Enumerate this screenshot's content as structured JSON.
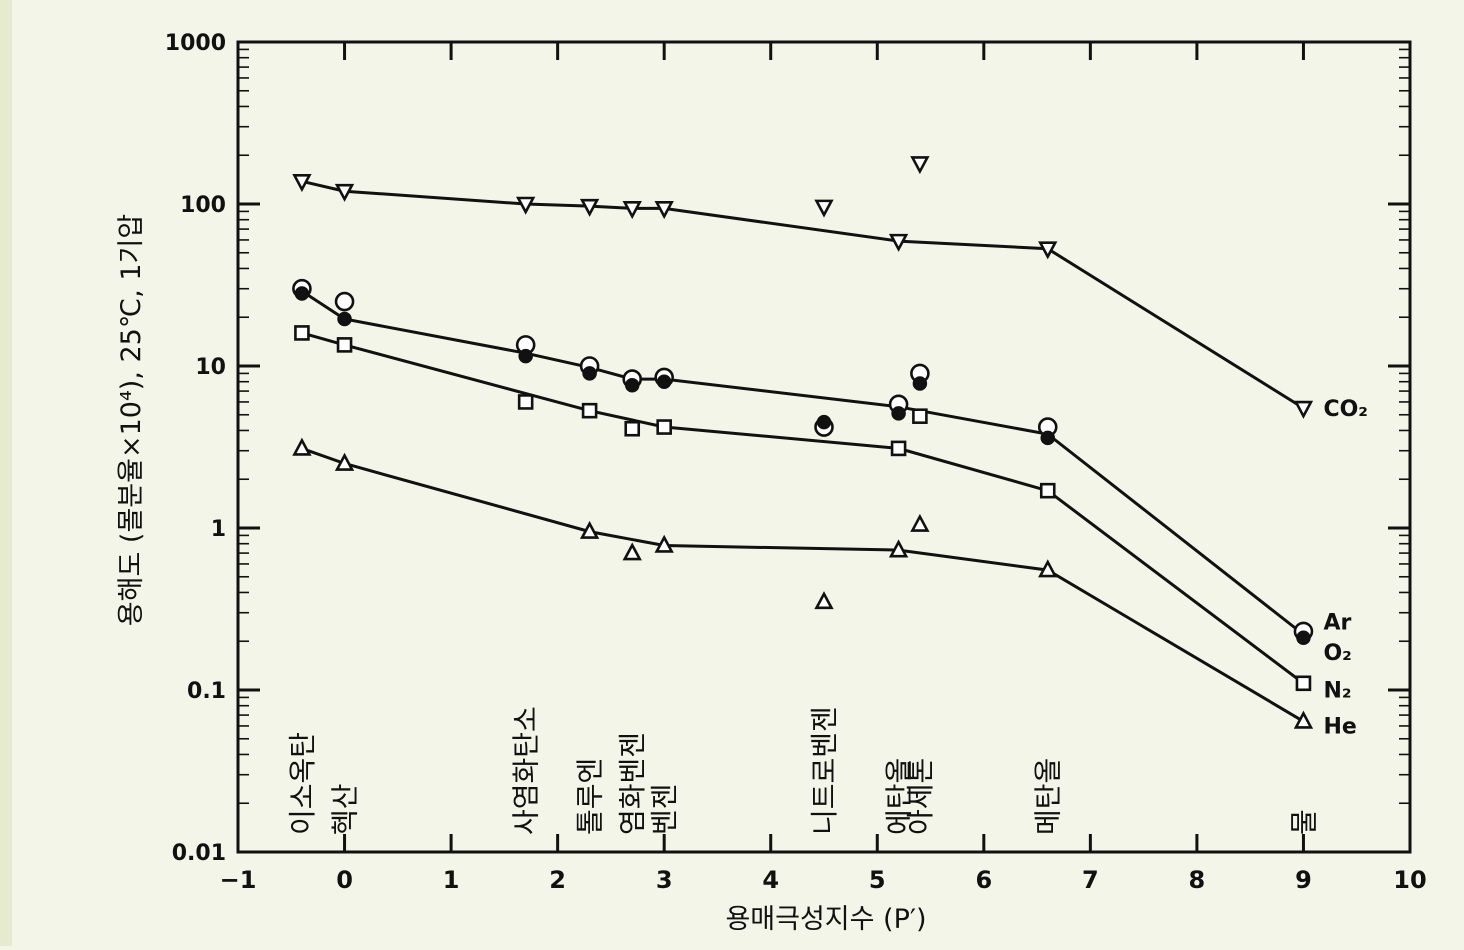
{
  "chart_data": {
    "type": "scatter",
    "xlabel": "용매극성지수 (P′)",
    "ylabel": "용해도 (몰분율×10⁴), 25℃, 1기압",
    "xlim": [
      -1,
      10
    ],
    "ylim": [
      0.01,
      1000
    ],
    "yscale": "log",
    "grid": false,
    "x_ticks": [
      "−1",
      "0",
      "1",
      "2",
      "3",
      "4",
      "5",
      "6",
      "7",
      "8",
      "9",
      "10"
    ],
    "y_ticks": [
      "0.01",
      "0.1",
      "1",
      "10",
      "100",
      "1000"
    ],
    "series": [
      {
        "name": "CO₂",
        "marker": "triangle-down",
        "points": [
          [
            -0.4,
            138
          ],
          [
            0,
            120
          ],
          [
            1.7,
            100
          ],
          [
            2.3,
            97
          ],
          [
            2.7,
            94
          ],
          [
            3.0,
            94
          ],
          [
            4.5,
            96
          ],
          [
            5.2,
            59
          ],
          [
            5.4,
            178
          ],
          [
            6.6,
            53
          ],
          [
            9.0,
            5.5
          ]
        ],
        "line": [
          [
            -0.4,
            138
          ],
          [
            0,
            120
          ],
          [
            1.7,
            100
          ],
          [
            2.3,
            97
          ],
          [
            2.7,
            94
          ],
          [
            3.0,
            94
          ],
          [
            5.2,
            59
          ],
          [
            6.6,
            53
          ],
          [
            9.0,
            5.5
          ]
        ]
      },
      {
        "name": "Ar",
        "marker": "circle-open",
        "points": [
          [
            -0.4,
            30
          ],
          [
            0,
            25
          ],
          [
            1.7,
            13.5
          ],
          [
            2.3,
            10
          ],
          [
            2.7,
            8.3
          ],
          [
            3.0,
            8.5
          ],
          [
            4.5,
            4.2
          ],
          [
            5.2,
            5.8
          ],
          [
            5.4,
            9
          ],
          [
            6.6,
            4.2
          ],
          [
            9.0,
            0.23
          ]
        ],
        "line": [
          [
            -0.4,
            29
          ],
          [
            0,
            19.5
          ],
          [
            1.7,
            12
          ],
          [
            2.3,
            9.8
          ],
          [
            2.7,
            8.3
          ],
          [
            3.0,
            8.3
          ],
          [
            5.2,
            5.6
          ],
          [
            6.6,
            3.8
          ],
          [
            9.0,
            0.22
          ]
        ]
      },
      {
        "name": "O₂",
        "marker": "circle-filled",
        "points": [
          [
            -0.4,
            28
          ],
          [
            0,
            19.5
          ],
          [
            1.7,
            11.5
          ],
          [
            2.3,
            9
          ],
          [
            2.7,
            7.6
          ],
          [
            3.0,
            8
          ],
          [
            4.5,
            4.5
          ],
          [
            5.2,
            5.1
          ],
          [
            5.4,
            7.8
          ],
          [
            6.6,
            3.6
          ],
          [
            9.0,
            0.21
          ]
        ]
      },
      {
        "name": "N₂",
        "marker": "square-open",
        "points": [
          [
            -0.4,
            16
          ],
          [
            0,
            13.5
          ],
          [
            1.7,
            6
          ],
          [
            2.3,
            5.3
          ],
          [
            2.7,
            4.1
          ],
          [
            3.0,
            4.2
          ],
          [
            5.2,
            3.1
          ],
          [
            5.4,
            4.9
          ],
          [
            6.6,
            1.7
          ],
          [
            9.0,
            0.11
          ]
        ],
        "line": [
          [
            -0.4,
            16
          ],
          [
            0,
            13.5
          ],
          [
            2.3,
            5.3
          ],
          [
            3.0,
            4.2
          ],
          [
            5.2,
            3.1
          ],
          [
            6.6,
            1.7
          ],
          [
            9.0,
            0.11
          ]
        ]
      },
      {
        "name": "He",
        "marker": "triangle-up",
        "points": [
          [
            -0.4,
            3.1
          ],
          [
            0,
            2.5
          ],
          [
            2.3,
            0.95
          ],
          [
            2.7,
            0.7
          ],
          [
            3.0,
            0.78
          ],
          [
            4.5,
            0.35
          ],
          [
            5.2,
            0.73
          ],
          [
            5.4,
            1.05
          ],
          [
            6.6,
            0.55
          ],
          [
            9.0,
            0.064
          ]
        ],
        "line": [
          [
            -0.4,
            3.1
          ],
          [
            0,
            2.5
          ],
          [
            2.3,
            0.95
          ],
          [
            3.0,
            0.78
          ],
          [
            5.2,
            0.73
          ],
          [
            6.6,
            0.55
          ],
          [
            9.0,
            0.064
          ]
        ]
      }
    ],
    "series_labels": [
      "CO₂",
      "Ar",
      "O₂",
      "N₂",
      "He"
    ],
    "solvent_labels": [
      {
        "text": "이소옥탄",
        "x": -0.4
      },
      {
        "text": "헥산",
        "x": 0.0
      },
      {
        "text": "사염화탄소",
        "x": 1.7
      },
      {
        "text": "톨루엔",
        "x": 2.3
      },
      {
        "text": "염화벤젠",
        "x": 2.7
      },
      {
        "text": "벤젠",
        "x": 3.0
      },
      {
        "text": "니트로벤젠",
        "x": 4.5
      },
      {
        "text": "에탄올",
        "x": 5.2
      },
      {
        "text": "아세톤",
        "x": 5.4
      },
      {
        "text": "메탄올",
        "x": 6.6
      },
      {
        "text": "물",
        "x": 9.0
      }
    ]
  }
}
